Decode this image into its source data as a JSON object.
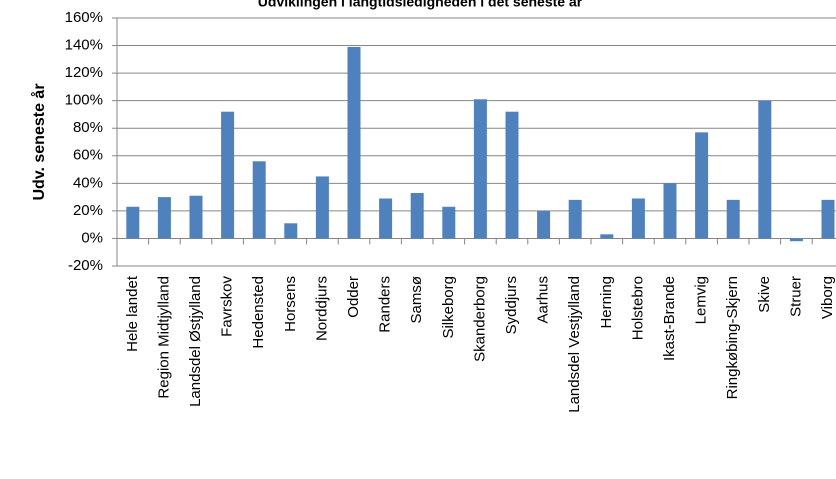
{
  "chart_data": {
    "type": "bar",
    "title": "Udviklingen i langtidsledigheden i det seneste år",
    "y_label": "Udv. seneste år",
    "categories": [
      "Hele landet",
      "Region Midtjylland",
      "Landsdel Østjylland",
      "Favrskov",
      "Hedensted",
      "Horsens",
      "Norddjurs",
      "Odder",
      "Randers",
      "Samsø",
      "Silkeborg",
      "Skanderborg",
      "Syddjurs",
      "Aarhus",
      "Landsdel Vestjylland",
      "Herning",
      "Holstebro",
      "Ikast-Brande",
      "Lemvig",
      "Ringkøbing-Skjern",
      "Skive",
      "Struer",
      "Viborg"
    ],
    "values": [
      23,
      30,
      31,
      92,
      56,
      11,
      45,
      139,
      29,
      33,
      23,
      101,
      92,
      20,
      28,
      3,
      29,
      40,
      77,
      28,
      100,
      -2,
      28
    ],
    "color": "#4f81bd",
    "ylim": [
      -20,
      160
    ],
    "yticks": [
      {
        "value": -20,
        "label": "-20%"
      },
      {
        "value": 0,
        "label": "0%"
      },
      {
        "value": 20,
        "label": "20%"
      },
      {
        "value": 40,
        "label": "40%"
      },
      {
        "value": 60,
        "label": "60%"
      },
      {
        "value": 80,
        "label": "80%"
      },
      {
        "value": 100,
        "label": "100%"
      },
      {
        "value": 120,
        "label": "120%"
      },
      {
        "value": 140,
        "label": "140%"
      },
      {
        "value": 160,
        "label": "160%"
      }
    ],
    "grid": true
  }
}
